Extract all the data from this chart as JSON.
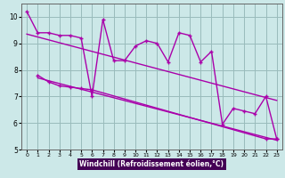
{
  "xlabel": "Windchill (Refroidissement éolien,°C)",
  "bg_color": "#cce8e8",
  "plot_bg_color": "#cce8e8",
  "xlabel_bg_color": "#440055",
  "xlabel_text_color": "#ffffff",
  "line_color": "#aa00aa",
  "grid_color": "#99bbbb",
  "spine_color": "#666666",
  "ylim": [
    5,
    10.5
  ],
  "xlim": [
    -0.5,
    23.5
  ],
  "yticks": [
    5,
    6,
    7,
    8,
    9,
    10
  ],
  "xticks": [
    0,
    1,
    2,
    3,
    4,
    5,
    6,
    7,
    8,
    9,
    10,
    11,
    12,
    13,
    14,
    15,
    16,
    17,
    18,
    19,
    20,
    21,
    22,
    23
  ],
  "main_series_x": [
    0,
    1,
    2,
    3,
    4,
    5,
    6,
    7,
    8,
    9,
    10,
    11,
    12,
    13,
    14,
    15,
    16,
    17,
    18,
    19,
    20,
    21,
    22,
    23
  ],
  "main_series_y": [
    10.2,
    9.4,
    9.4,
    9.3,
    9.3,
    9.2,
    7.0,
    9.9,
    8.35,
    8.35,
    8.9,
    9.1,
    9.0,
    8.3,
    9.4,
    9.3,
    8.3,
    8.7,
    5.95,
    6.55,
    6.45,
    6.35,
    7.0,
    5.4
  ],
  "lower_series_x": [
    1,
    2,
    3,
    4,
    5,
    6,
    22,
    23
  ],
  "lower_series_y": [
    7.8,
    7.55,
    7.4,
    7.35,
    7.3,
    7.25,
    5.4,
    5.4
  ],
  "trend1_x": [
    0,
    23
  ],
  "trend1_y": [
    9.35,
    6.85
  ],
  "trend2_x": [
    1,
    23
  ],
  "trend2_y": [
    7.7,
    5.35
  ]
}
